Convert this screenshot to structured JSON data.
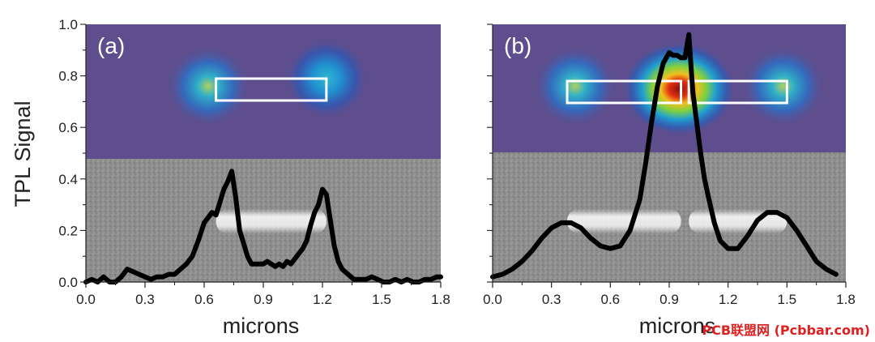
{
  "watermark": "PCB联盟网 (Pcbbar.com)",
  "colors": {
    "line": "#000000",
    "heatmap_bg": "#5e4e8e",
    "sem_bg": "#8c8c8c",
    "box": "#ffffff"
  },
  "chart_data": [
    {
      "type": "line",
      "panel_label": "(a)",
      "xlabel": "microns",
      "ylabel": "TPL Signal",
      "xlim": [
        0.0,
        1.8
      ],
      "ylim": [
        0.0,
        1.0
      ],
      "x_ticks": [
        "0.0",
        "0.3",
        "0.6",
        "0.9",
        "1.2",
        "1.5",
        "1.8"
      ],
      "y_ticks": [
        "0.0",
        "0.2",
        "0.4",
        "0.6",
        "0.8",
        "1.0"
      ],
      "grid": false,
      "series": [
        {
          "x": [
            0.0,
            0.03,
            0.06,
            0.09,
            0.12,
            0.15,
            0.18,
            0.21,
            0.24,
            0.27,
            0.3,
            0.33,
            0.36,
            0.39,
            0.42,
            0.45,
            0.48,
            0.51,
            0.54,
            0.57,
            0.6,
            0.62,
            0.64,
            0.66,
            0.68,
            0.7,
            0.72,
            0.74,
            0.76,
            0.78,
            0.8,
            0.82,
            0.84,
            0.86,
            0.88,
            0.9,
            0.92,
            0.94,
            0.96,
            0.98,
            1.0,
            1.02,
            1.04,
            1.06,
            1.08,
            1.1,
            1.12,
            1.14,
            1.16,
            1.18,
            1.2,
            1.22,
            1.24,
            1.26,
            1.28,
            1.3,
            1.33,
            1.36,
            1.39,
            1.42,
            1.45,
            1.48,
            1.51,
            1.54,
            1.57,
            1.6,
            1.63,
            1.66,
            1.69,
            1.72,
            1.75,
            1.78,
            1.8
          ],
          "y": [
            0.0,
            0.01,
            0.0,
            0.02,
            0.0,
            0.0,
            0.02,
            0.05,
            0.04,
            0.03,
            0.02,
            0.01,
            0.02,
            0.02,
            0.03,
            0.03,
            0.05,
            0.07,
            0.1,
            0.16,
            0.23,
            0.25,
            0.27,
            0.26,
            0.31,
            0.36,
            0.39,
            0.43,
            0.33,
            0.2,
            0.15,
            0.1,
            0.07,
            0.07,
            0.07,
            0.07,
            0.08,
            0.07,
            0.06,
            0.07,
            0.06,
            0.08,
            0.07,
            0.09,
            0.11,
            0.13,
            0.16,
            0.22,
            0.27,
            0.3,
            0.36,
            0.34,
            0.24,
            0.14,
            0.08,
            0.05,
            0.03,
            0.01,
            0.01,
            0.01,
            0.02,
            0.01,
            0.0,
            0.0,
            0.01,
            0.0,
            0.01,
            0.0,
            0.0,
            0.01,
            0.01,
            0.02,
            0.02
          ]
        }
      ],
      "heatmap_spots": [
        {
          "x": 0.62,
          "y": 0.76,
          "intensity": 0.55
        },
        {
          "x": 1.22,
          "y": 0.79,
          "intensity": 0.45
        }
      ],
      "rod_segments": [
        [
          0.66,
          1.22
        ]
      ]
    },
    {
      "type": "line",
      "panel_label": "(b)",
      "xlabel": "microns",
      "xlim": [
        0.0,
        1.8
      ],
      "ylim": [
        0.0,
        1.0
      ],
      "x_ticks": [
        "0.0",
        "0.3",
        "0.6",
        "0.9",
        "1.2",
        "1.5",
        "1.8"
      ],
      "grid": false,
      "series": [
        {
          "x": [
            0.0,
            0.05,
            0.1,
            0.15,
            0.2,
            0.25,
            0.3,
            0.35,
            0.4,
            0.45,
            0.5,
            0.55,
            0.6,
            0.65,
            0.7,
            0.75,
            0.78,
            0.81,
            0.84,
            0.87,
            0.9,
            0.92,
            0.94,
            0.96,
            0.98,
            1.0,
            1.02,
            1.04,
            1.06,
            1.08,
            1.1,
            1.13,
            1.16,
            1.2,
            1.25,
            1.3,
            1.35,
            1.4,
            1.45,
            1.5,
            1.55,
            1.6,
            1.65,
            1.7,
            1.75
          ],
          "y": [
            0.02,
            0.03,
            0.05,
            0.08,
            0.12,
            0.17,
            0.21,
            0.23,
            0.23,
            0.21,
            0.17,
            0.14,
            0.13,
            0.14,
            0.2,
            0.32,
            0.46,
            0.62,
            0.76,
            0.85,
            0.89,
            0.88,
            0.88,
            0.87,
            0.87,
            0.96,
            0.74,
            0.62,
            0.5,
            0.4,
            0.33,
            0.23,
            0.16,
            0.13,
            0.13,
            0.18,
            0.24,
            0.27,
            0.27,
            0.25,
            0.2,
            0.14,
            0.08,
            0.05,
            0.03
          ]
        }
      ],
      "heatmap_spots": [
        {
          "x": 0.95,
          "y": 0.75,
          "intensity": 1.0
        },
        {
          "x": 0.42,
          "y": 0.76,
          "intensity": 0.5
        },
        {
          "x": 1.48,
          "y": 0.76,
          "intensity": 0.5
        }
      ],
      "rod_segments": [
        [
          0.38,
          0.96
        ],
        [
          1.0,
          1.5
        ]
      ]
    }
  ]
}
